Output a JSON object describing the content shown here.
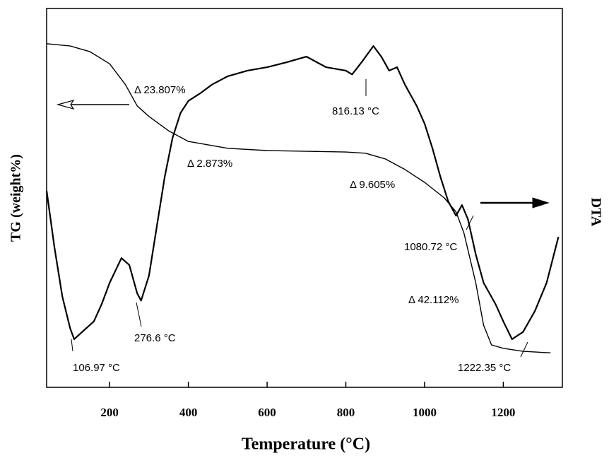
{
  "chart_data": {
    "type": "line",
    "xlabel": "Temperature (°C)",
    "ylabel": "TG (weight%)",
    "y2label": "DTA",
    "xlim": [
      40,
      1350
    ],
    "xticks": [
      200,
      400,
      600,
      800,
      1000,
      1200
    ],
    "ylim": [
      0,
      100
    ],
    "y2lim": [
      0,
      100
    ],
    "series": [
      {
        "color": "#000000",
        "x": [
          40,
          100,
          150,
          200,
          240,
          270,
          300,
          350,
          400,
          500,
          600,
          700,
          800,
          850,
          900,
          950,
          1000,
          1050,
          1080,
          1100,
          1130,
          1150,
          1170,
          1200,
          1250,
          1320
        ],
        "values": [
          90.7,
          90.1,
          88.6,
          85.4,
          79.9,
          74.3,
          71.5,
          67.7,
          64.9,
          63.1,
          62.5,
          62.3,
          62.1,
          61.8,
          60.3,
          57.5,
          54.1,
          50.0,
          46.3,
          40.7,
          27.6,
          16.4,
          11.2,
          10.3,
          9.5,
          9.1
        ]
      },
      {
        "color": "#000000",
        "axis": "y2",
        "x": [
          40,
          60,
          80,
          100,
          110,
          130,
          160,
          180,
          200,
          230,
          250,
          270,
          280,
          300,
          320,
          340,
          360,
          380,
          400,
          430,
          460,
          500,
          550,
          600,
          650,
          700,
          750,
          800,
          816,
          840,
          870,
          890,
          910,
          930,
          950,
          980,
          1000,
          1020,
          1040,
          1060,
          1080,
          1095,
          1110,
          1130,
          1150,
          1180,
          1200,
          1222,
          1250,
          1280,
          1310,
          1340
        ],
        "values": [
          51.9,
          36.9,
          23.9,
          15.5,
          12.7,
          14.6,
          17.4,
          22.0,
          27.6,
          34.1,
          32.3,
          24.8,
          22.9,
          29.5,
          42.5,
          55.6,
          65.9,
          72.4,
          75.6,
          77.6,
          79.9,
          82.1,
          83.6,
          84.5,
          85.8,
          87.3,
          84.5,
          83.6,
          82.6,
          85.8,
          90.1,
          87.3,
          83.6,
          84.5,
          79.9,
          74.3,
          69.6,
          63.1,
          55.6,
          49.1,
          45.3,
          48.1,
          44.4,
          35.1,
          27.6,
          22.0,
          17.4,
          12.7,
          14.6,
          20.1,
          27.6,
          39.7
        ]
      }
    ],
    "annotations": [
      "Δ 23.807%",
      "Δ 2.873%",
      "Δ 9.605%",
      "Δ 42.112%",
      "106.97 °C",
      "276.6 °C",
      "816.13 °C",
      "1080.72 °C",
      "1222.35 °C"
    ]
  }
}
